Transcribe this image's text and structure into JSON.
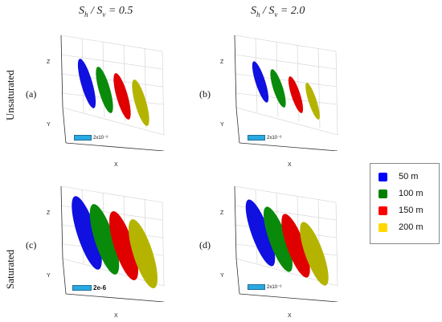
{
  "headers": {
    "left": {
      "s": "S",
      "h": "h",
      "sv": "S",
      "v": "v",
      "value": "= 0.5"
    },
    "right": {
      "s": "S",
      "h": "h",
      "sv": "S",
      "v": "v",
      "value": "= 2.0"
    }
  },
  "rows": {
    "top": "Unsaturated",
    "bottom": "Saturated"
  },
  "panels": [
    {
      "letter": "(a)",
      "scale": "2x10⁻⁶",
      "z": "Z",
      "y": "Y",
      "x": "X"
    },
    {
      "letter": "(b)",
      "scale": "2x10⁻⁶",
      "z": "Z",
      "y": "Y",
      "x": "X"
    },
    {
      "letter": "(c)",
      "scale": "2e-6",
      "z": "Z",
      "y": "Y",
      "x": "X"
    },
    {
      "letter": "(d)",
      "scale": "2x10⁻⁶",
      "z": "Z",
      "y": "Y",
      "x": "X"
    }
  ],
  "legend": [
    {
      "label": "50 m",
      "color": "#0000ff"
    },
    {
      "label": "100 m",
      "color": "#008000"
    },
    {
      "label": "150 m",
      "color": "#ff0000"
    },
    {
      "label": "200 m",
      "color": "#ffd800"
    }
  ],
  "colors": {
    "ellipsoid_50": "#1010e0",
    "ellipsoid_100": "#0a8a0a",
    "ellipsoid_150": "#e00000",
    "ellipsoid_200": "#b4b400",
    "scale_bar": "#29a9e1"
  }
}
